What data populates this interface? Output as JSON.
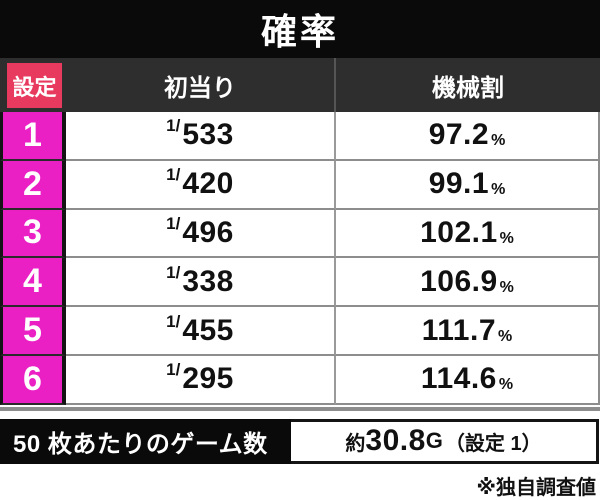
{
  "title": "確率",
  "table": {
    "headers": {
      "setting": "設定",
      "first_hit": "初当り",
      "payout": "機械割"
    },
    "rows": [
      {
        "setting": "1",
        "hit_prefix": "1/",
        "hit_value": "533",
        "payout_value": "97.2",
        "payout_unit": "%"
      },
      {
        "setting": "2",
        "hit_prefix": "1/",
        "hit_value": "420",
        "payout_value": "99.1",
        "payout_unit": "%"
      },
      {
        "setting": "3",
        "hit_prefix": "1/",
        "hit_value": "496",
        "payout_value": "102.1",
        "payout_unit": "%"
      },
      {
        "setting": "4",
        "hit_prefix": "1/",
        "hit_value": "338",
        "payout_value": "106.9",
        "payout_unit": "%"
      },
      {
        "setting": "5",
        "hit_prefix": "1/",
        "hit_value": "455",
        "payout_value": "111.7",
        "payout_unit": "%"
      },
      {
        "setting": "6",
        "hit_prefix": "1/",
        "hit_value": "295",
        "payout_value": "114.6",
        "payout_unit": "%"
      }
    ]
  },
  "footer_bar": {
    "label": "50 枚あたりのゲーム数",
    "value_prefix": "約",
    "value_number": "30.8",
    "value_unit": "G",
    "value_note": "（設定 1）"
  },
  "footnote": "※独自調査値",
  "colors": {
    "title_bg": "#0a0a0a",
    "header_bg": "#2e2e2e",
    "setting_header_bg": "#e83a5f",
    "setting_cell_bg": "#ea1fc4",
    "row_divider": "#8d8d8d",
    "text_dark": "#111111",
    "text_light": "#ffffff"
  },
  "chart_data": {
    "type": "table",
    "title": "確率",
    "columns": [
      "設定",
      "初当り",
      "機械割"
    ],
    "rows": [
      [
        "1",
        "1/533",
        "97.2%"
      ],
      [
        "2",
        "1/420",
        "99.1%"
      ],
      [
        "3",
        "1/496",
        "102.1%"
      ],
      [
        "4",
        "1/338",
        "106.9%"
      ],
      [
        "5",
        "1/455",
        "111.7%"
      ],
      [
        "6",
        "1/295",
        "114.6%"
      ]
    ],
    "extra_row": {
      "label": "50 枚あたりのゲーム数",
      "value": "約30.8G（設定 1）"
    },
    "footnote": "※独自調査値"
  }
}
